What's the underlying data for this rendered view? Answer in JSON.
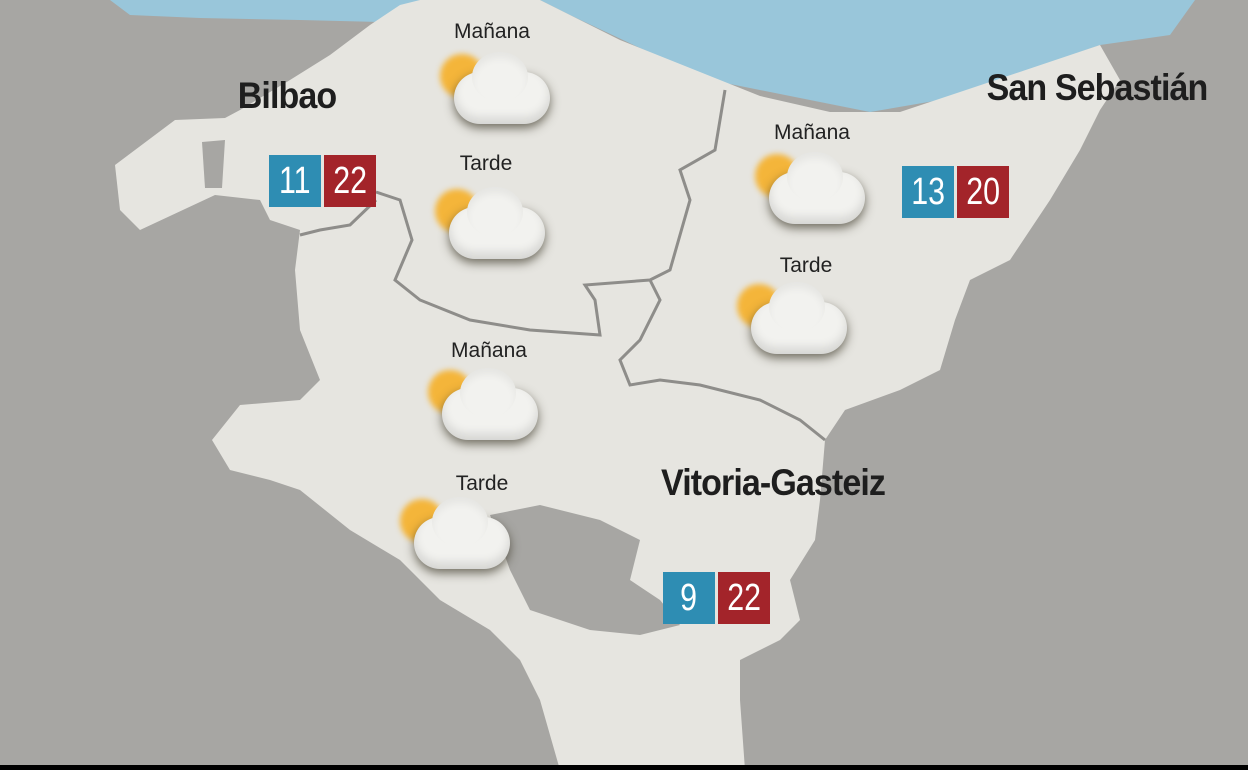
{
  "colors": {
    "sea": "#99c6da",
    "land": "#e6e5e0",
    "outside": "#a7a6a3",
    "min_temp": "#2e8db3",
    "max_temp": "#a3242a",
    "sun": "#f4b53a"
  },
  "cities": [
    {
      "name": "Bilbao",
      "min": "11",
      "max": "22",
      "forecast": [
        {
          "period": "Mañana",
          "icon": "sun-behind-cloud-icon"
        },
        {
          "period": "Tarde",
          "icon": "sun-behind-cloud-icon"
        }
      ]
    },
    {
      "name": "San Sebastián",
      "min": "13",
      "max": "20",
      "forecast": [
        {
          "period": "Mañana",
          "icon": "sun-behind-cloud-icon"
        },
        {
          "period": "Tarde",
          "icon": "sun-behind-cloud-icon"
        }
      ]
    },
    {
      "name": "Vitoria-Gasteiz",
      "min": "9",
      "max": "22",
      "forecast": [
        {
          "period": "Mañana",
          "icon": "sun-behind-cloud-icon"
        },
        {
          "period": "Tarde",
          "icon": "sun-behind-cloud-icon"
        }
      ]
    }
  ]
}
